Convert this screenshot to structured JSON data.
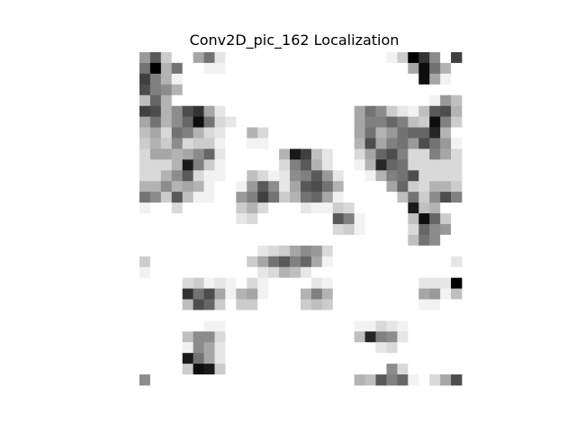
{
  "chart_data": {
    "type": "heatmap",
    "title": "Conv2D_pic_162 Localization",
    "xlabel": "",
    "ylabel": "",
    "axes_visible": false,
    "colormap": "gray_r",
    "value_range": [
      0,
      1
    ],
    "rows": 31,
    "cols": 31,
    "values": [
      [
        0,
        0.4,
        0.65,
        0.2,
        0,
        0,
        0.35,
        0.55,
        0.1,
        0,
        0,
        0,
        0,
        0,
        0,
        0,
        0,
        0,
        0,
        0,
        0,
        0,
        0,
        0,
        0.05,
        0.2,
        1,
        0.8,
        0.45,
        0,
        0.75
      ],
      [
        0,
        0.55,
        1,
        0.3,
        0.55,
        0,
        0,
        0.05,
        0.05,
        0,
        0,
        0,
        0,
        0,
        0,
        0,
        0,
        0,
        0,
        0,
        0,
        0,
        0,
        0,
        0,
        0,
        0.35,
        0.95,
        0.55,
        0.3,
        0
      ],
      [
        0,
        0.75,
        0.5,
        0.3,
        0.05,
        0,
        0,
        0,
        0,
        0,
        0,
        0,
        0,
        0,
        0,
        0,
        0,
        0,
        0,
        0,
        0,
        0,
        0,
        0,
        0,
        0,
        0,
        0.95,
        0.35,
        0.05,
        0
      ],
      [
        0,
        0.7,
        0.5,
        0.45,
        0.3,
        0,
        0,
        0,
        0,
        0,
        0,
        0,
        0,
        0,
        0,
        0,
        0,
        0,
        0,
        0,
        0,
        0,
        0,
        0,
        0,
        0,
        0,
        0,
        0,
        0,
        0
      ],
      [
        0,
        0.25,
        0.6,
        0.3,
        0,
        0,
        0,
        0,
        0,
        0,
        0,
        0,
        0,
        0,
        0,
        0,
        0,
        0,
        0,
        0,
        0,
        0,
        0,
        0,
        0,
        0,
        0,
        0,
        0.05,
        0.4,
        0.25
      ],
      [
        0,
        0.75,
        0.7,
        0.3,
        0.45,
        0.7,
        0.8,
        0.35,
        0.1,
        0,
        0,
        0,
        0,
        0,
        0,
        0,
        0,
        0,
        0,
        0,
        0,
        0.35,
        0.55,
        0.45,
        0.2,
        0.1,
        0.05,
        0.25,
        0.65,
        0.7,
        0.3
      ],
      [
        0,
        0.35,
        0.55,
        0.3,
        0.45,
        0.6,
        0.95,
        0.55,
        0.15,
        0.1,
        0,
        0,
        0,
        0,
        0,
        0,
        0,
        0,
        0,
        0,
        0,
        0.35,
        0.5,
        0.5,
        0.6,
        0.5,
        0.25,
        0.2,
        0.95,
        0.5,
        0.2
      ],
      [
        0,
        0.25,
        0.35,
        0.15,
        0.55,
        0.5,
        0.3,
        0.15,
        0.1,
        0,
        0,
        0.3,
        0.15,
        0,
        0,
        0,
        0,
        0,
        0,
        0,
        0,
        0.35,
        0.55,
        0.3,
        0.4,
        0.55,
        0.6,
        0.6,
        0.85,
        0.3,
        0
      ],
      [
        0,
        0.2,
        0.3,
        0.2,
        0.45,
        0.15,
        0.2,
        0.2,
        0.05,
        0,
        0,
        0.05,
        0.05,
        0,
        0,
        0,
        0,
        0,
        0,
        0,
        0,
        0.3,
        0.7,
        0.35,
        0.5,
        0.55,
        0.4,
        0.7,
        0.55,
        0.4,
        0.05
      ],
      [
        0,
        0.15,
        0.35,
        0.35,
        0.3,
        0.35,
        0.45,
        0.6,
        0.1,
        0,
        0,
        0,
        0,
        0,
        0.3,
        0.9,
        0.75,
        0.25,
        0.1,
        0,
        0,
        0.15,
        0.35,
        0.6,
        0.7,
        0.5,
        0.15,
        0.15,
        0.5,
        0.35,
        0.15
      ],
      [
        0,
        0.15,
        0.15,
        0.15,
        0.3,
        0.9,
        0.5,
        0.2,
        0.05,
        0,
        0,
        0,
        0,
        0,
        0.15,
        0.5,
        0.65,
        0.3,
        0.1,
        0,
        0,
        0.05,
        0.3,
        0.85,
        0.6,
        0.55,
        0.15,
        0.15,
        0.15,
        0.15,
        0.15
      ],
      [
        0,
        0.15,
        0.15,
        0.3,
        0.45,
        0.65,
        0.15,
        0.05,
        0.05,
        0,
        0,
        0.25,
        0.15,
        0.05,
        0.1,
        0.45,
        0.5,
        0.65,
        0.4,
        0.1,
        0,
        0,
        0.05,
        0.3,
        0.5,
        0.55,
        0.7,
        0.15,
        0.15,
        0.15,
        0.15
      ],
      [
        0,
        0.3,
        0.3,
        0.45,
        0.3,
        0.35,
        0.3,
        0.05,
        0,
        0,
        0.05,
        0.4,
        0.65,
        0.45,
        0.1,
        0.35,
        0.65,
        0.7,
        0.55,
        0.3,
        0,
        0,
        0,
        0,
        0.35,
        0.6,
        0.2,
        0.15,
        0.3,
        0.3,
        0.2
      ],
      [
        0,
        0.55,
        0.45,
        0.2,
        0.65,
        0.25,
        0.05,
        0.05,
        0,
        0,
        0.4,
        0.5,
        0.75,
        0.55,
        0.2,
        0.3,
        0.55,
        0.6,
        0.35,
        0.05,
        0,
        0,
        0,
        0,
        0,
        0.25,
        0.55,
        0.2,
        0.45,
        0.7,
        0.5
      ],
      [
        0,
        0.05,
        0,
        0,
        0.15,
        0,
        0,
        0,
        0,
        0,
        0.2,
        0.3,
        0.15,
        0,
        0,
        0,
        0.1,
        0.05,
        0.05,
        0.2,
        0.15,
        0,
        0,
        0,
        0,
        0,
        0.9,
        0.25,
        0.3,
        0,
        0
      ],
      [
        0,
        0,
        0,
        0,
        0,
        0,
        0,
        0,
        0,
        0,
        0.1,
        0.15,
        0,
        0,
        0,
        0,
        0,
        0,
        0,
        0.65,
        0.5,
        0.05,
        0,
        0,
        0,
        0,
        0.25,
        0.95,
        0.6,
        0.2,
        0
      ],
      [
        0,
        0,
        0,
        0,
        0,
        0,
        0,
        0,
        0,
        0,
        0,
        0,
        0,
        0,
        0,
        0,
        0,
        0,
        0,
        0.15,
        0.2,
        0.05,
        0,
        0,
        0,
        0,
        0.15,
        0.6,
        0.45,
        0.4,
        0
      ],
      [
        0,
        0,
        0,
        0,
        0,
        0,
        0,
        0,
        0,
        0,
        0,
        0,
        0,
        0,
        0,
        0,
        0,
        0,
        0,
        0,
        0,
        0,
        0,
        0,
        0,
        0,
        0.25,
        0.55,
        0.45,
        0,
        0
      ],
      [
        0,
        0,
        0,
        0,
        0,
        0,
        0,
        0,
        0,
        0,
        0,
        0,
        0.1,
        0.15,
        0.2,
        0.35,
        0.45,
        0.4,
        0.15,
        0,
        0,
        0,
        0,
        0,
        0,
        0,
        0,
        0,
        0,
        0,
        0
      ],
      [
        0,
        0.2,
        0,
        0,
        0,
        0,
        0,
        0,
        0,
        0,
        0,
        0.2,
        0.35,
        0.55,
        0.65,
        0.5,
        0.6,
        0.35,
        0.05,
        0,
        0,
        0,
        0,
        0,
        0,
        0,
        0,
        0,
        0,
        0,
        0.1
      ],
      [
        0,
        0.05,
        0,
        0,
        0,
        0,
        0,
        0,
        0,
        0,
        0,
        0,
        0.1,
        0.15,
        0.3,
        0.25,
        0.1,
        0,
        0,
        0,
        0,
        0,
        0,
        0,
        0,
        0,
        0,
        0,
        0,
        0,
        0
      ],
      [
        0,
        0,
        0,
        0,
        0,
        0.15,
        0.2,
        0.05,
        0.1,
        0.05,
        0,
        0.15,
        0.05,
        0,
        0,
        0,
        0,
        0.1,
        0.05,
        0,
        0,
        0,
        0,
        0,
        0,
        0,
        0,
        0.1,
        0.1,
        0.1,
        1
      ],
      [
        0,
        0,
        0,
        0,
        0,
        0.8,
        0.55,
        0.7,
        0.35,
        0.05,
        0.3,
        0.35,
        0.05,
        0,
        0,
        0,
        0.3,
        0.5,
        0.3,
        0,
        0,
        0,
        0,
        0,
        0,
        0,
        0,
        0.35,
        0.4,
        0.05,
        0.25
      ],
      [
        0,
        0,
        0,
        0,
        0,
        0.25,
        0.7,
        0.6,
        0.2,
        0,
        0.2,
        0.2,
        0,
        0,
        0,
        0,
        0.2,
        0.25,
        0.2,
        0,
        0,
        0,
        0,
        0,
        0,
        0,
        0,
        0.05,
        0.05,
        0,
        0
      ],
      [
        0,
        0,
        0,
        0,
        0,
        0,
        0,
        0,
        0,
        0,
        0,
        0,
        0,
        0,
        0,
        0,
        0,
        0,
        0,
        0,
        0,
        0,
        0,
        0,
        0,
        0,
        0,
        0,
        0,
        0,
        0
      ],
      [
        0,
        0,
        0,
        0,
        0,
        0,
        0,
        0.05,
        0.05,
        0,
        0,
        0,
        0,
        0,
        0,
        0,
        0,
        0,
        0,
        0,
        0,
        0.05,
        0.05,
        0.15,
        0.1,
        0.05,
        0,
        0,
        0,
        0,
        0
      ],
      [
        0,
        0,
        0,
        0,
        0,
        0.25,
        0.45,
        0.45,
        0.15,
        0,
        0,
        0,
        0,
        0,
        0,
        0,
        0,
        0,
        0,
        0,
        0,
        0.25,
        0.85,
        0.5,
        0.45,
        0.1,
        0,
        0,
        0,
        0,
        0
      ],
      [
        0,
        0,
        0,
        0,
        0,
        0.05,
        0.45,
        0.35,
        0.1,
        0,
        0,
        0,
        0,
        0,
        0,
        0,
        0,
        0,
        0,
        0,
        0,
        0,
        0,
        0.1,
        0.15,
        0,
        0,
        0,
        0,
        0,
        0
      ],
      [
        0,
        0,
        0,
        0,
        0,
        0.9,
        0.55,
        0.35,
        0.1,
        0,
        0,
        0,
        0,
        0,
        0,
        0,
        0,
        0,
        0,
        0,
        0,
        0,
        0,
        0,
        0,
        0,
        0,
        0,
        0,
        0,
        0
      ],
      [
        0,
        0,
        0,
        0,
        0,
        0.2,
        0.95,
        0.9,
        0.2,
        0,
        0,
        0,
        0,
        0,
        0,
        0,
        0,
        0,
        0,
        0,
        0,
        0,
        0,
        0,
        0.45,
        0.15,
        0,
        0,
        0,
        0,
        0
      ],
      [
        0,
        0.45,
        0,
        0,
        0,
        0,
        0,
        0,
        0,
        0,
        0,
        0,
        0,
        0,
        0,
        0,
        0,
        0,
        0,
        0,
        0,
        0.3,
        0.25,
        0.65,
        0.5,
        0.6,
        0.05,
        0,
        0.15,
        0.35,
        0.7
      ]
    ]
  }
}
